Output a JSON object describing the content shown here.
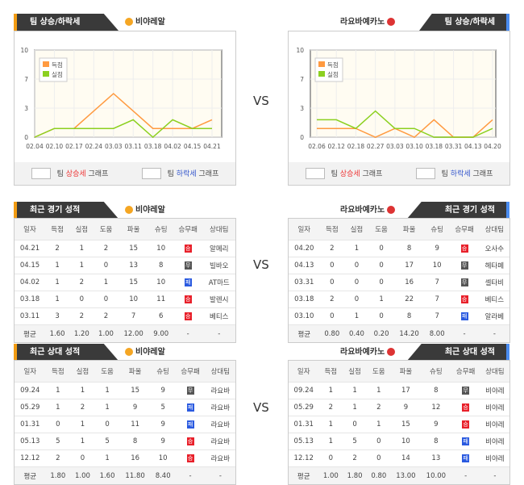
{
  "vs_label": "VS",
  "home": {
    "name": "비야레알",
    "badge_color": "#f5a623"
  },
  "away": {
    "name": "라요바예카노",
    "badge_color": "#d33"
  },
  "trend": {
    "title": "팀 상승/하락세",
    "legend_score": "득점",
    "legend_concede": "실점",
    "footer": {
      "up_pre": "팀",
      "up": "상승세",
      "up_post": "그래프",
      "down_pre": "팀",
      "down": "하락세",
      "down_post": "그래프"
    }
  },
  "chart_data": [
    {
      "type": "line",
      "ylim": [
        0,
        10
      ],
      "yticks": [
        "0",
        "3",
        "7",
        "10"
      ],
      "grid": true,
      "legend": "top-left",
      "categories": [
        "02.04",
        "02.10",
        "02.17",
        "02.24",
        "03.03",
        "03.11",
        "03.18",
        "04.02",
        "04.15",
        "04.21"
      ],
      "series": [
        {
          "name": "득점",
          "color": "#ff9a40",
          "values": [
            0,
            1,
            1,
            3,
            5,
            3,
            1,
            1,
            1,
            2
          ]
        },
        {
          "name": "실점",
          "color": "#8cd020",
          "values": [
            0,
            1,
            1,
            1,
            1,
            2,
            0,
            2,
            1,
            1
          ]
        }
      ]
    },
    {
      "type": "line",
      "ylim": [
        0,
        10
      ],
      "yticks": [
        "0",
        "3",
        "7",
        "10"
      ],
      "grid": true,
      "legend": "top-left",
      "categories": [
        "02.06",
        "02.12",
        "02.18",
        "02.27",
        "03.03",
        "03.10",
        "03.18",
        "03.31",
        "04.13",
        "04.20"
      ],
      "series": [
        {
          "name": "득점",
          "color": "#ff9a40",
          "values": [
            1,
            1,
            1,
            0,
            1,
            0,
            2,
            0,
            0,
            2
          ]
        },
        {
          "name": "실점",
          "color": "#8cd020",
          "values": [
            2,
            2,
            1,
            3,
            1,
            1,
            0,
            0,
            0,
            1
          ]
        }
      ]
    }
  ],
  "columns": [
    "일자",
    "득점",
    "실점",
    "도움",
    "파울",
    "슈팅",
    "승무패",
    "상대팀"
  ],
  "result_colors": {
    "승": "#e8202a",
    "무": "#555555",
    "패": "#2a5ae0"
  },
  "recent": {
    "title": "최근 경기 성적",
    "home": {
      "rows": [
        [
          "04.21",
          "2",
          "1",
          "2",
          "15",
          "10",
          "승",
          "알메리"
        ],
        [
          "04.15",
          "1",
          "1",
          "0",
          "13",
          "8",
          "무",
          "빌바오"
        ],
        [
          "04.02",
          "1",
          "2",
          "1",
          "15",
          "10",
          "패",
          "AT마드"
        ],
        [
          "03.18",
          "1",
          "0",
          "0",
          "10",
          "11",
          "승",
          "발렌시"
        ],
        [
          "03.11",
          "3",
          "2",
          "2",
          "7",
          "6",
          "승",
          "베티스"
        ]
      ],
      "avg": [
        "평균",
        "1.60",
        "1.20",
        "1.00",
        "12.00",
        "9.00",
        "-",
        "-"
      ]
    },
    "away": {
      "rows": [
        [
          "04.20",
          "2",
          "1",
          "0",
          "8",
          "9",
          "승",
          "오사수"
        ],
        [
          "04.13",
          "0",
          "0",
          "0",
          "17",
          "10",
          "무",
          "헤타페"
        ],
        [
          "03.31",
          "0",
          "0",
          "0",
          "16",
          "7",
          "무",
          "셀타비"
        ],
        [
          "03.18",
          "2",
          "0",
          "1",
          "22",
          "7",
          "승",
          "베티스"
        ],
        [
          "03.10",
          "0",
          "1",
          "0",
          "8",
          "7",
          "패",
          "알라베"
        ]
      ],
      "avg": [
        "평균",
        "0.80",
        "0.40",
        "0.20",
        "14.20",
        "8.00",
        "-",
        "-"
      ]
    }
  },
  "h2h": {
    "title": "최근 상대 성적",
    "home": {
      "rows": [
        [
          "09.24",
          "1",
          "1",
          "1",
          "15",
          "9",
          "무",
          "라요바"
        ],
        [
          "05.29",
          "1",
          "2",
          "1",
          "9",
          "5",
          "패",
          "라요바"
        ],
        [
          "01.31",
          "0",
          "1",
          "0",
          "11",
          "9",
          "패",
          "라요바"
        ],
        [
          "05.13",
          "5",
          "1",
          "5",
          "8",
          "9",
          "승",
          "라요바"
        ],
        [
          "12.12",
          "2",
          "0",
          "1",
          "16",
          "10",
          "승",
          "라요바"
        ]
      ],
      "avg": [
        "평균",
        "1.80",
        "1.00",
        "1.60",
        "11.80",
        "8.40",
        "-",
        "-"
      ]
    },
    "away": {
      "rows": [
        [
          "09.24",
          "1",
          "1",
          "1",
          "17",
          "8",
          "무",
          "비야레"
        ],
        [
          "05.29",
          "2",
          "1",
          "2",
          "9",
          "12",
          "승",
          "비야레"
        ],
        [
          "01.31",
          "1",
          "0",
          "1",
          "15",
          "9",
          "승",
          "비야레"
        ],
        [
          "05.13",
          "1",
          "5",
          "0",
          "10",
          "8",
          "패",
          "비야레"
        ],
        [
          "12.12",
          "0",
          "2",
          "0",
          "14",
          "13",
          "패",
          "비야레"
        ]
      ],
      "avg": [
        "평균",
        "1.00",
        "1.80",
        "0.80",
        "13.00",
        "10.00",
        "-",
        "-"
      ]
    }
  }
}
